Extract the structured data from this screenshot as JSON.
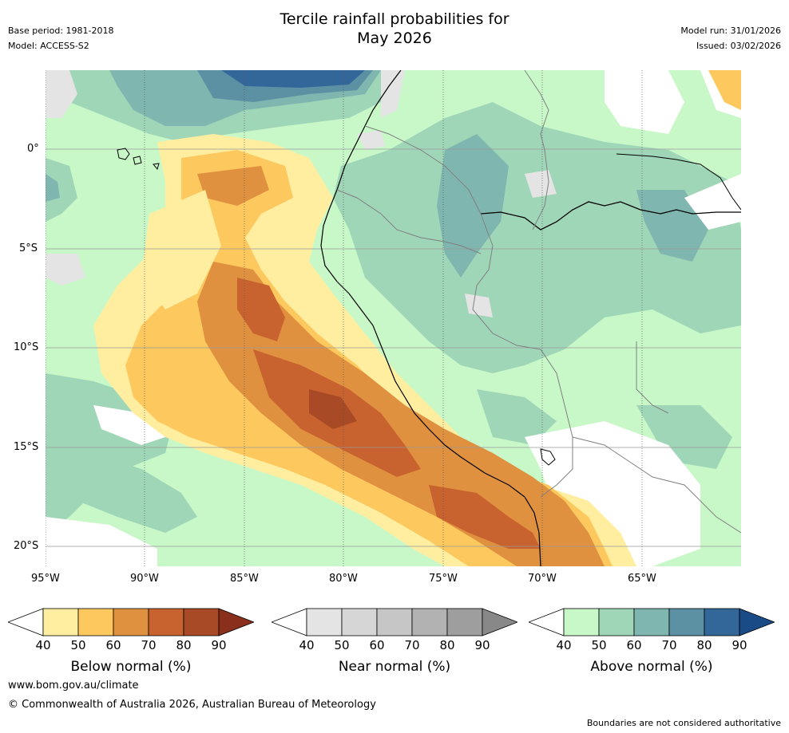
{
  "header": {
    "title_line1": "Tercile rainfall probabilities for",
    "title_line2": "May 2026",
    "base_period": "Base period: 1981-2018",
    "model": "Model: ACCESS-S2",
    "model_run": "Model run: 31/01/2026",
    "issued": "Issued: 03/02/2026"
  },
  "map": {
    "lat_labels": [
      "0°",
      "5°S",
      "10°S",
      "15°S",
      "20°S"
    ],
    "lon_labels": [
      "95°W",
      "90°W",
      "85°W",
      "80°W",
      "75°W",
      "70°W",
      "65°W"
    ]
  },
  "colorbars": [
    {
      "name": "below",
      "title": "Below normal (%)",
      "ticks": [
        "40",
        "50",
        "60",
        "70",
        "80",
        "90"
      ],
      "colors": [
        "#ffeea0",
        "#fdc85e",
        "#e0913f",
        "#c8622f",
        "#a84a26",
        "#8a2f1c"
      ]
    },
    {
      "name": "near",
      "title": "Near normal (%)",
      "ticks": [
        "40",
        "50",
        "60",
        "70",
        "80",
        "90"
      ],
      "colors": [
        "#e4e4e4",
        "#d6d6d6",
        "#c6c6c6",
        "#b2b2b2",
        "#9e9e9e",
        "#888888"
      ]
    },
    {
      "name": "above",
      "title": "Above normal (%)",
      "ticks": [
        "40",
        "50",
        "60",
        "70",
        "80",
        "90"
      ],
      "colors": [
        "#c8f8c8",
        "#a0d6b8",
        "#7fb6b0",
        "#5b91a3",
        "#33679a",
        "#1b4b86"
      ]
    }
  ],
  "footer": {
    "url": "www.bom.gov.au/climate",
    "copyright": "© Commonwealth of Australia 2026, Australian Bureau of Meteorology",
    "disclaimer": "Boundaries are not considered authoritative"
  }
}
